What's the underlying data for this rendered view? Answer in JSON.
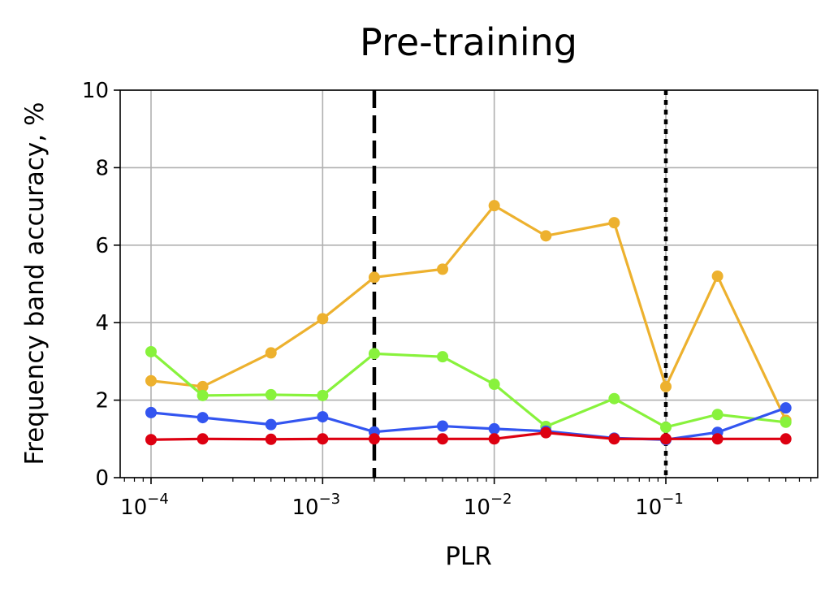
{
  "chart_data": {
    "type": "line",
    "title": "Pre-training",
    "xlabel": "PLR",
    "ylabel": "Frequency band accuracy, %",
    "xscale": "log",
    "xlim": [
      6e-05,
      0.8
    ],
    "ylim": [
      0,
      10
    ],
    "grid": true,
    "x_ticks": [
      {
        "value": 0.0001,
        "base": "10",
        "exp": "−4"
      },
      {
        "value": 0.001,
        "base": "10",
        "exp": "−3"
      },
      {
        "value": 0.01,
        "base": "10",
        "exp": "−2"
      },
      {
        "value": 0.1,
        "base": "10",
        "exp": "−1"
      }
    ],
    "y_ticks": [
      "0",
      "2",
      "4",
      "6",
      "8",
      "10"
    ],
    "x": [
      0.0001,
      0.0002,
      0.0005,
      0.001,
      0.002,
      0.005,
      0.01,
      0.02,
      0.05,
      0.1,
      0.2,
      0.5
    ],
    "series": [
      {
        "color": "#edb12e",
        "values": [
          2.5,
          2.35,
          3.22,
          4.1,
          5.17,
          5.38,
          7.02,
          6.24,
          6.58,
          2.35,
          5.2,
          1.48
        ]
      },
      {
        "color": "#88f23c",
        "values": [
          3.25,
          2.12,
          2.14,
          2.12,
          3.2,
          3.12,
          2.41,
          1.32,
          2.04,
          1.3,
          1.63,
          1.43
        ]
      },
      {
        "color": "#3355f0",
        "values": [
          1.68,
          1.55,
          1.37,
          1.57,
          1.18,
          1.33,
          1.26,
          1.2,
          1.02,
          0.98,
          1.17,
          1.8
        ]
      },
      {
        "color": "#dd0011",
        "values": [
          0.98,
          1.0,
          0.99,
          1.0,
          1.0,
          1.0,
          1.0,
          1.16,
          1.0,
          1.0,
          1.0,
          1.0
        ]
      }
    ],
    "reference_lines": [
      {
        "x": 0.002,
        "style": "dashed",
        "color": "#000000"
      },
      {
        "x": 0.1,
        "style": "dotted",
        "color": "#000000"
      }
    ]
  }
}
